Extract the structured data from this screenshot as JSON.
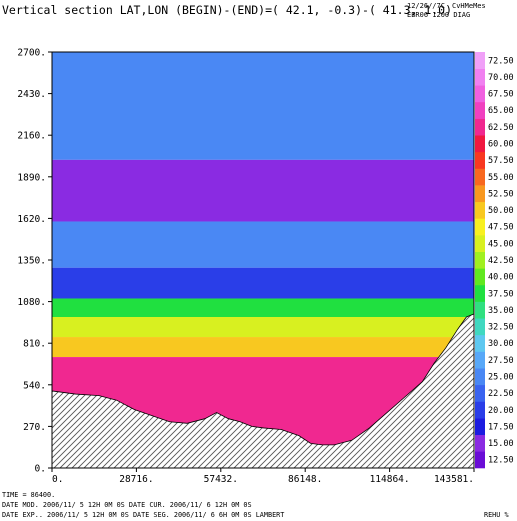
{
  "header": {
    "title": "Vertical section LAT,LON (BEGIN)-(END)=( 42.1, -0.3)-( 41.3,  1.0)",
    "corner_line1": "12/26//7C",
    "corner_line2": "CvHMeMes",
    "corner_line3": "EBR06 1200 DIAG"
  },
  "footer": {
    "time": "TIME =    86400.",
    "line1": "DATE MOD. 2006/11/ 5  12H 0M 0S   DATE CUR. 2006/11/ 6  12H 0M 0S",
    "line2": "DATE EXP.. 2006/11/ 5  12H 0M 0S   DATE SEG. 2006/11/ 6   6H 0M 0S   LAMBERT",
    "var": "REHU %"
  },
  "colors": {
    "terrain_hatch": "#555555",
    "frame": "#000000",
    "background": "#ffffff"
  },
  "chart_data": {
    "type": "heatmap",
    "title": "Vertical section LAT,LON (BEGIN)-(END)=( 42.1, -0.3)-( 41.3,  1.0)",
    "xlabel": "",
    "ylabel": "",
    "variable": "REHU %",
    "xlim": [
      0,
      143581
    ],
    "ylim": [
      0,
      2700
    ],
    "x_ticks": [
      "0.",
      "28716.",
      "57432.",
      "86148.",
      "114864.",
      "143581."
    ],
    "x_tick_values": [
      0,
      28716,
      57432,
      86148,
      114864,
      143581
    ],
    "y_ticks": [
      "0.",
      "270.",
      "540.",
      "810.",
      "1080.",
      "1350.",
      "1620.",
      "1890.",
      "2160.",
      "2430.",
      "2700."
    ],
    "y_tick_values": [
      0,
      270,
      540,
      810,
      1080,
      1350,
      1620,
      1890,
      2160,
      2430,
      2700
    ],
    "colorbar": {
      "levels": [
        12.5,
        15.0,
        17.5,
        20.0,
        22.5,
        25.0,
        27.5,
        30.0,
        32.5,
        35.0,
        37.5,
        40.0,
        42.5,
        45.0,
        47.5,
        50.0,
        52.5,
        55.0,
        57.5,
        60.0,
        62.5,
        65.0,
        67.5,
        70.0,
        72.5
      ],
      "labels": [
        "12.50",
        "15.00",
        "17.50",
        "20.00",
        "22.50",
        "25.00",
        "27.50",
        "30.00",
        "32.50",
        "35.00",
        "37.50",
        "40.00",
        "42.50",
        "45.00",
        "47.50",
        "50.00",
        "52.50",
        "55.00",
        "57.50",
        "60.00",
        "62.50",
        "65.00",
        "67.50",
        "70.00",
        "72.50"
      ],
      "colors": [
        "#6a0dd6",
        "#8a2be2",
        "#1c1ce0",
        "#2a3ee8",
        "#3a64f0",
        "#4a88f4",
        "#58a8f8",
        "#5ec8f0",
        "#40d8c0",
        "#30e080",
        "#20e040",
        "#60e820",
        "#a0f020",
        "#d8f020",
        "#f8f020",
        "#f8c820",
        "#f89820",
        "#f86820",
        "#f83820",
        "#f01840",
        "#f02890",
        "#f040c0",
        "#f060e0",
        "#f080f0",
        "#f0a0f8"
      ]
    },
    "terrain_profile": {
      "x": [
        0,
        8000,
        16000,
        22000,
        28000,
        34000,
        40000,
        46000,
        52000,
        56000,
        60000,
        64000,
        68000,
        72000,
        78000,
        84000,
        88000,
        92000,
        96000,
        102000,
        108000,
        114000,
        120000,
        126000,
        130000,
        134000,
        138000,
        141000,
        143581
      ],
      "y": [
        500,
        480,
        470,
        440,
        380,
        340,
        300,
        290,
        320,
        360,
        320,
        300,
        270,
        260,
        250,
        210,
        160,
        150,
        150,
        180,
        260,
        360,
        460,
        560,
        680,
        780,
        900,
        980,
        1000
      ]
    },
    "rh_field": [
      {
        "x": [
          0,
          143581
        ],
        "ytop": 2700,
        "ybot": 2000,
        "value": 25
      },
      {
        "x": [
          0,
          143581
        ],
        "ytop": 2000,
        "ybot": 1600,
        "value": 15
      },
      {
        "x": [
          0,
          143581
        ],
        "ytop": 1600,
        "ybot": 1300,
        "value": 25
      },
      {
        "x": [
          0,
          143581
        ],
        "ytop": 1300,
        "ybot": 1100,
        "value": 20
      },
      {
        "x": [
          0,
          143581
        ],
        "ytop": 1100,
        "ybot": 980,
        "value": 37.5
      },
      {
        "x": [
          0,
          143581
        ],
        "ytop": 980,
        "ybot": 850,
        "value": 45
      },
      {
        "x": [
          0,
          143581
        ],
        "ytop": 850,
        "ybot": 720,
        "value": 50
      },
      {
        "x": [
          0,
          143581
        ],
        "ytop": 720,
        "ybot": 0,
        "value": 62.5
      }
    ]
  }
}
